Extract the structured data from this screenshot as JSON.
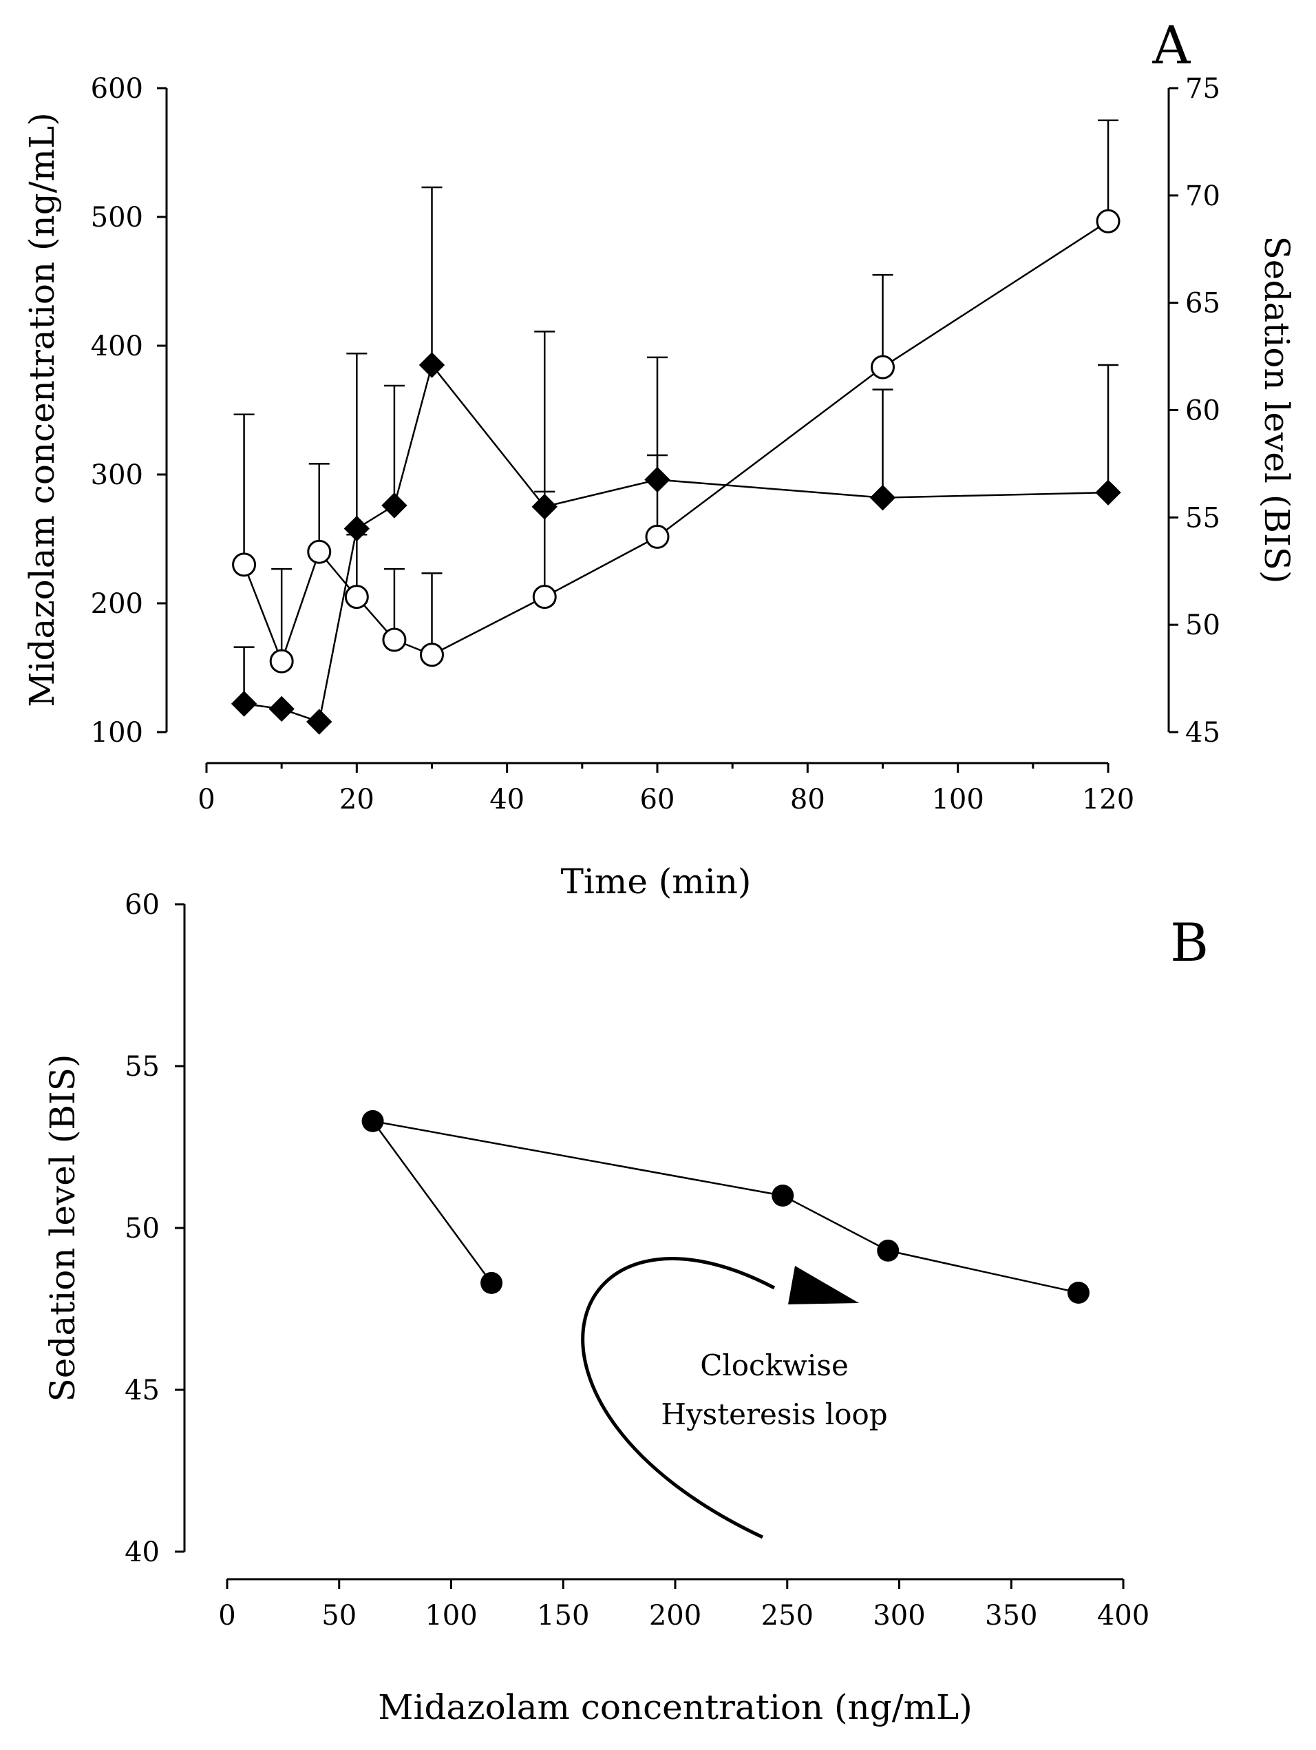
{
  "chart_data": [
    {
      "panel": "A",
      "type": "line",
      "title": "",
      "xlabel": "Time (min)",
      "ylabel": "Midazolam concentration (ng/mL)",
      "y2label": "Sedation level (BIS)",
      "xlim": [
        0,
        120
      ],
      "ylim": [
        100,
        600
      ],
      "y2lim": [
        45,
        75
      ],
      "xticks": [
        0,
        20,
        40,
        60,
        80,
        100,
        120
      ],
      "yticks": [
        100,
        200,
        300,
        400,
        500,
        600
      ],
      "y2ticks": [
        45,
        50,
        55,
        60,
        65,
        70,
        75
      ],
      "grid": false,
      "series": [
        {
          "name": "Midazolam concentration",
          "axis": "left",
          "marker": "filled-diamond",
          "x": [
            5,
            10,
            15,
            20,
            25,
            30,
            45,
            60,
            90,
            120
          ],
          "values": [
            122,
            118,
            108,
            258,
            276,
            385,
            275,
            296,
            282,
            286
          ],
          "error_upper": [
            44,
            0,
            0,
            136,
            93,
            138,
            136,
            95,
            84,
            99
          ]
        },
        {
          "name": "Sedation level (BIS)",
          "axis": "right",
          "marker": "open-circle",
          "x": [
            5,
            10,
            15,
            20,
            25,
            30,
            45,
            60,
            90,
            120
          ],
          "values": [
            52.8,
            48.3,
            53.4,
            51.3,
            49.3,
            48.6,
            51.3,
            54.1,
            62.0,
            68.8
          ],
          "error_upper": [
            7.0,
            4.3,
            4.1,
            2.9,
            3.3,
            3.8,
            4.9,
            3.8,
            4.3,
            4.7
          ]
        }
      ]
    },
    {
      "panel": "B",
      "type": "line",
      "title": "",
      "xlabel": "Midazolam concentration (ng/mL)",
      "ylabel": "Sedation level (BIS)",
      "xlim": [
        0,
        400
      ],
      "ylim": [
        40,
        60
      ],
      "xticks": [
        0,
        50,
        100,
        150,
        200,
        250,
        300,
        350,
        400
      ],
      "yticks": [
        40,
        45,
        50,
        55,
        60
      ],
      "grid": false,
      "series": [
        {
          "name": "Hysteresis",
          "marker": "filled-circle",
          "x": [
            118,
            65,
            248,
            295,
            380
          ],
          "values": [
            48.3,
            53.3,
            51.0,
            49.3,
            48.0
          ]
        }
      ],
      "annotation": "Clockwise Hysteresis loop",
      "annotation_lines": [
        "Clockwise",
        "Hysteresis loop"
      ]
    }
  ]
}
